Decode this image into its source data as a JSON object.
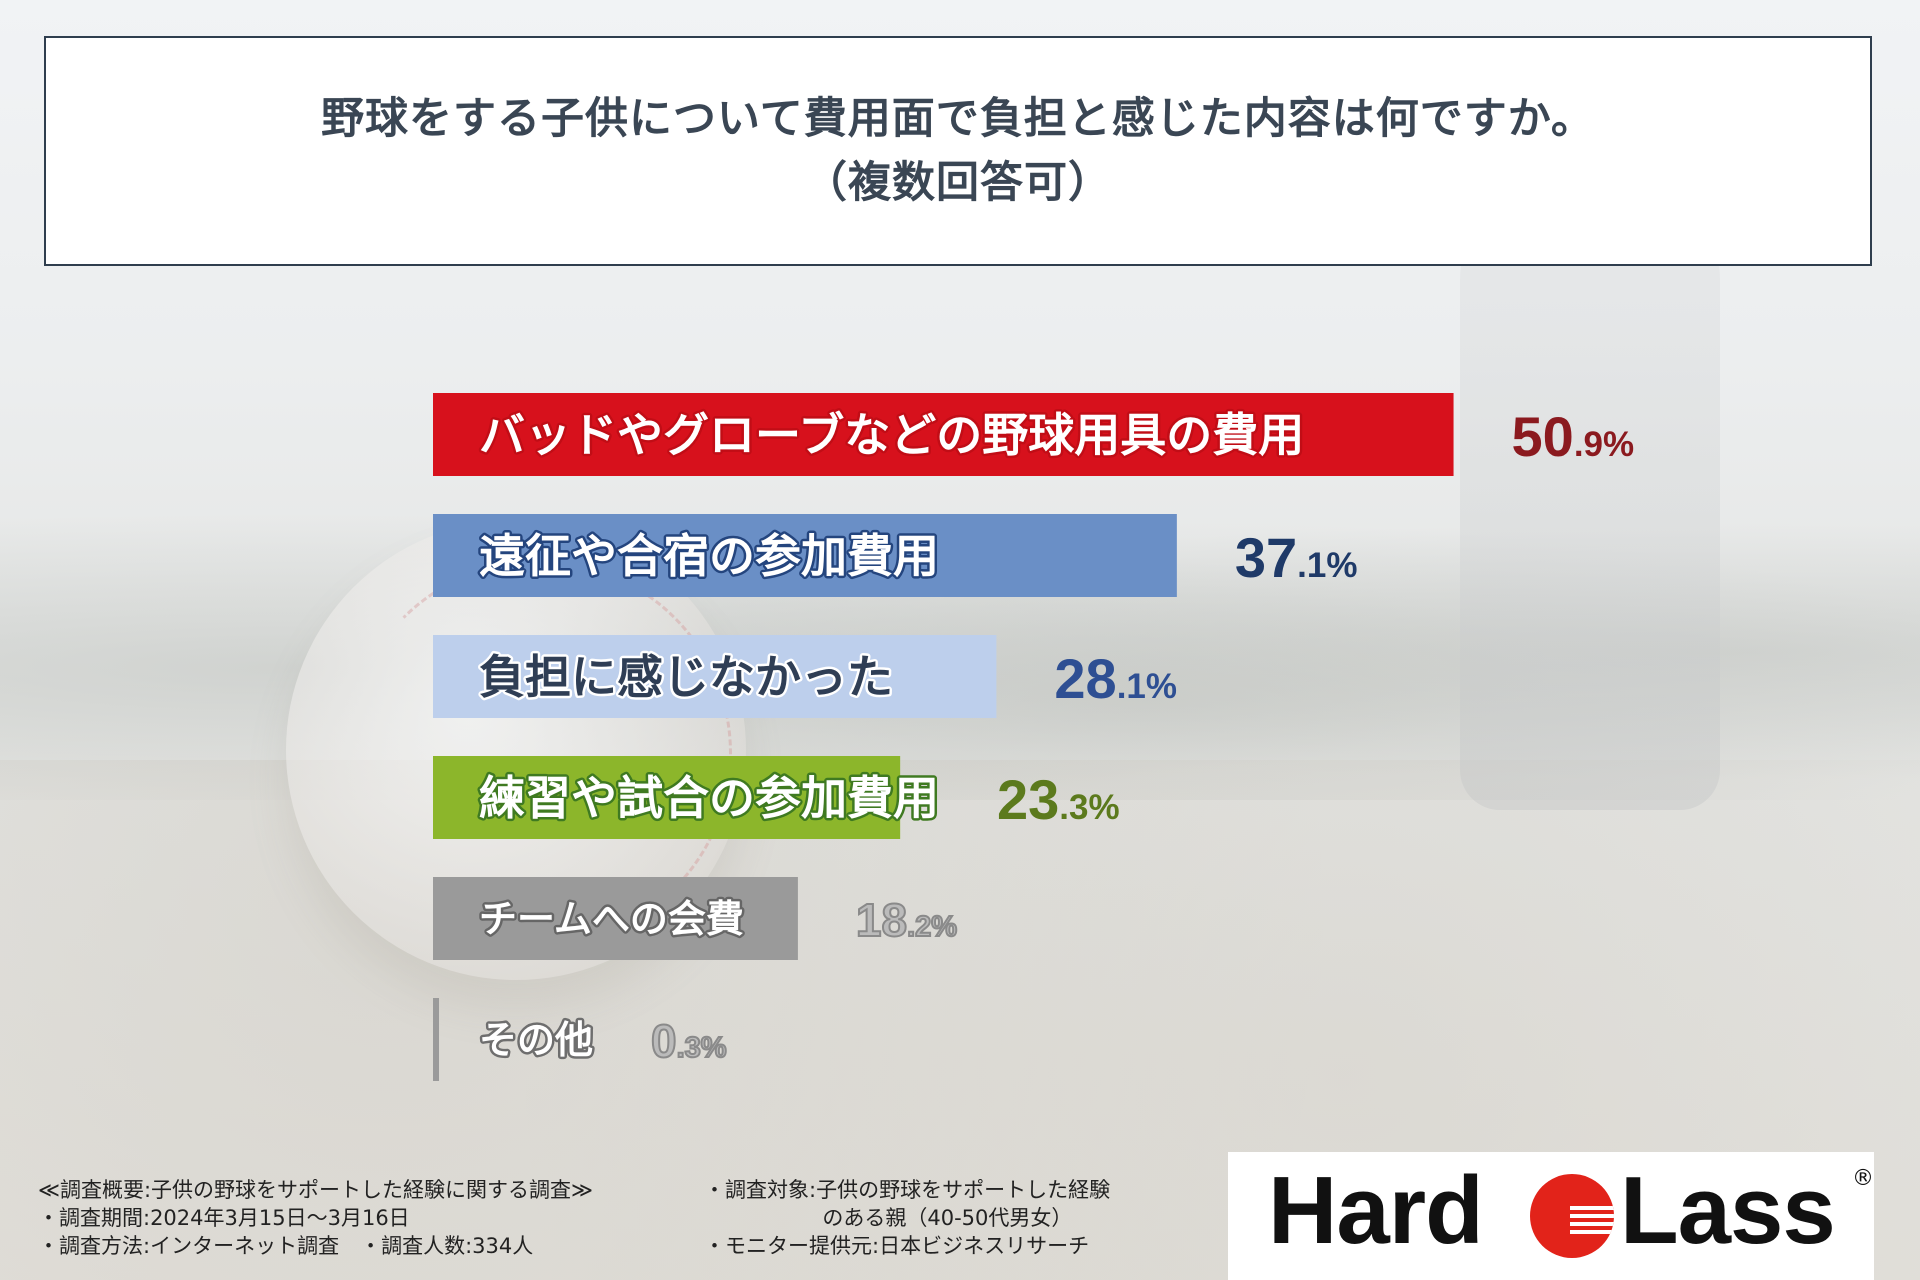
{
  "title": {
    "line1": "野球をする子供について費用面で負担と感じた内容は何ですか。",
    "line2": "（複数回答可）"
  },
  "chart_data": {
    "type": "bar",
    "orientation": "horizontal",
    "categories": [
      "バッドやグローブなどの野球用具の費用",
      "遠征や合宿の参加費用",
      "負担に感じなかった",
      "練習や試合の参加費用",
      "チームへの会費",
      "その他"
    ],
    "values": [
      50.9,
      37.1,
      28.1,
      23.3,
      18.2,
      0.3
    ],
    "value_labels": [
      {
        "int": "50",
        "dec": ".9%"
      },
      {
        "int": "37",
        "dec": ".1%"
      },
      {
        "int": "28",
        "dec": ".1%"
      },
      {
        "int": "23",
        "dec": ".3%"
      },
      {
        "int": "18",
        "dec": ".2%"
      },
      {
        "int": "0",
        "dec": ".3%"
      }
    ],
    "unit": "%",
    "colors": [
      "#d7111c",
      "#6a8fc6",
      "#bdcfec",
      "#8cb62b",
      "#9a9a9a",
      "#9a9a9a"
    ],
    "value_colors": [
      "#8b1a1f",
      "#1f3a68",
      "#2e4f93",
      "#5c7a1d",
      "#bbbbbb",
      "#bbbbbb"
    ],
    "label_colors": [
      "#ffffff",
      "#ffffff",
      "#2f3e55",
      "#ffffff",
      "#ffffff",
      "#ffffff"
    ],
    "label_outline": [
      "#c10d16",
      "#24457e",
      "#ffffff",
      "#3f7a21",
      "#666666",
      "#6e6e6e"
    ]
  },
  "footer": {
    "left": [
      "≪調査概要:子供の野球をサポートした経験に関する調査≫",
      "・調査期間:2024年3月15日～3月16日",
      "・調査方法:インターネット調査　・調査人数:334人"
    ],
    "right": [
      "・調査対象:子供の野球をサポートした経験",
      "　　　　　  のある親（40-50代男女）",
      "・モニター提供元:日本ビジネスリサーチ"
    ]
  },
  "logo": {
    "left": "Hard",
    "right": "Lass",
    "mark": "®",
    "accent": "#e2231a"
  }
}
